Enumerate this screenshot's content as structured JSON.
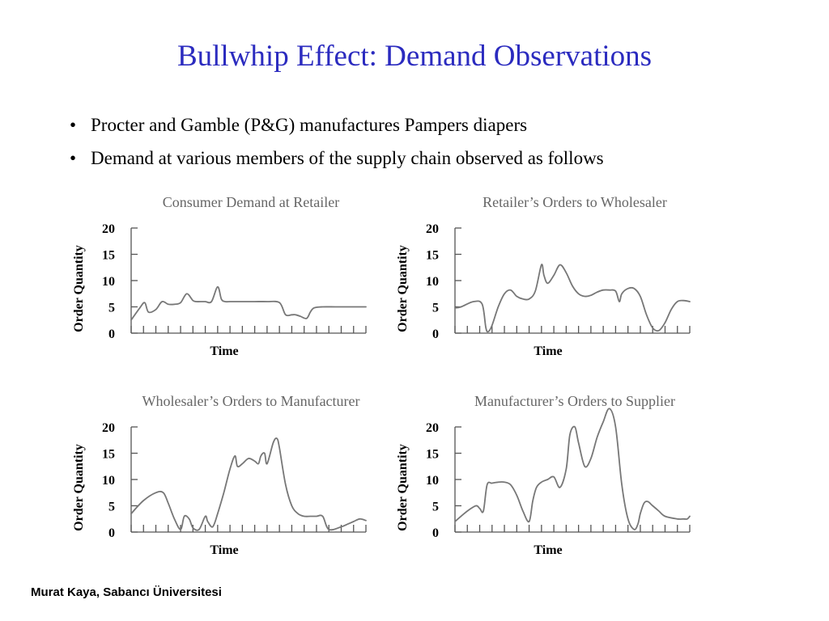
{
  "slide": {
    "title": "Bullwhip Effect: Demand Observations",
    "bullets": [
      "Procter and Gamble (P&G) manufactures Pampers diapers",
      "Demand at various members of the supply chain observed as follows"
    ],
    "footer": "Murat Kaya, Sabancı Üniversitesi"
  },
  "colors": {
    "title": "#2b2bbf",
    "line": "#777777",
    "chart_title": "#666666"
  },
  "chart_data": [
    {
      "type": "line",
      "title": "Consumer Demand at Retailer",
      "xlabel": "Time",
      "ylabel": "Order Quantity",
      "yticks": [
        "0",
        "5",
        "10",
        "15",
        "20"
      ],
      "ylim": [
        0,
        20
      ],
      "xlim": [
        0,
        19
      ],
      "x_tick_count": 20,
      "grid": false,
      "series": [
        {
          "x": [
            0,
            0.7,
            1.1,
            1.4,
            2.0,
            2.5,
            3.0,
            3.5,
            4.0,
            4.5,
            5.0,
            5.3,
            5.6,
            6.0,
            6.5,
            7.0,
            7.3,
            7.6,
            8.0,
            8.6,
            9.0,
            10.0,
            11.0,
            12.0,
            12.5,
            13.0,
            13.3,
            13.7,
            14.2,
            14.5,
            14.8,
            15.5,
            16.5,
            17.5,
            18.5,
            19.0
          ],
          "y": [
            2.5,
            4.8,
            5.8,
            4.0,
            4.5,
            6.0,
            5.5,
            5.5,
            5.8,
            7.5,
            6.2,
            6.0,
            6.0,
            6.0,
            6.0,
            8.8,
            6.5,
            6.0,
            6.0,
            6.0,
            6.0,
            6.0,
            6.0,
            5.8,
            3.5,
            3.5,
            3.5,
            3.2,
            2.8,
            4.0,
            4.8,
            5.0,
            5.0,
            5.0,
            5.0,
            5.0
          ]
        }
      ]
    },
    {
      "type": "line",
      "title": "Retailer’s Orders to Wholesaler",
      "xlabel": "Time",
      "ylabel": "Order Quantity",
      "yticks": [
        "0",
        "5",
        "10",
        "15",
        "20"
      ],
      "ylim": [
        0,
        20
      ],
      "xlim": [
        0,
        19
      ],
      "x_tick_count": 20,
      "grid": false,
      "series": [
        {
          "x": [
            0,
            0.5,
            1.5,
            2.2,
            2.5,
            2.7,
            3.0,
            3.5,
            4.0,
            4.5,
            5.0,
            5.5,
            6.0,
            6.5,
            7.0,
            7.2,
            7.5,
            8.0,
            8.5,
            9.0,
            9.5,
            10.0,
            10.5,
            11.0,
            11.5,
            12.0,
            12.5,
            13.0,
            13.3,
            13.5,
            14.0,
            14.5,
            15.0,
            15.5,
            16.0,
            16.5,
            17.0,
            17.5,
            18.0,
            18.5,
            19.0
          ],
          "y": [
            4.8,
            5.0,
            6.0,
            5.5,
            1.0,
            0.3,
            1.5,
            5.0,
            7.5,
            8.2,
            7.0,
            6.5,
            6.5,
            8.0,
            13.0,
            11.0,
            9.5,
            11.0,
            13.0,
            11.5,
            9.0,
            7.5,
            7.0,
            7.2,
            7.8,
            8.2,
            8.2,
            8.0,
            6.0,
            7.5,
            8.5,
            8.5,
            7.0,
            3.5,
            1.0,
            0.5,
            2.0,
            4.5,
            6.0,
            6.2,
            6.0
          ]
        }
      ]
    },
    {
      "type": "line",
      "title": "Wholesaler’s Orders to Manufacturer",
      "xlabel": "Time",
      "ylabel": "Order Quantity",
      "yticks": [
        "0",
        "5",
        "10",
        "15",
        "20"
      ],
      "ylim": [
        0,
        20
      ],
      "xlim": [
        0,
        19
      ],
      "x_tick_count": 20,
      "grid": false,
      "series": [
        {
          "x": [
            0,
            1.0,
            2.0,
            2.6,
            3.0,
            3.5,
            4.0,
            4.3,
            4.7,
            5.0,
            5.5,
            6.0,
            6.2,
            6.6,
            7.0,
            7.5,
            8.0,
            8.4,
            8.6,
            9.0,
            9.5,
            10.0,
            10.3,
            10.5,
            10.8,
            11.0,
            11.5,
            11.8,
            12.0,
            12.5,
            13.0,
            13.5,
            14.0,
            14.5,
            15.0,
            15.5,
            16.0,
            17.0,
            17.5,
            18.0,
            18.5,
            19.0
          ],
          "y": [
            3.5,
            6.0,
            7.5,
            7.5,
            5.5,
            2.5,
            0.5,
            3.0,
            2.5,
            0.8,
            0.5,
            3.0,
            2.0,
            1.0,
            3.5,
            7.5,
            12.0,
            14.5,
            12.5,
            13.0,
            14.0,
            13.5,
            13.0,
            14.5,
            15.0,
            13.0,
            17.0,
            17.8,
            16.0,
            9.0,
            5.0,
            3.5,
            3.0,
            3.0,
            3.0,
            3.0,
            0.5,
            1.0,
            1.5,
            2.0,
            2.5,
            2.2
          ]
        }
      ]
    },
    {
      "type": "line",
      "title": "Manufacturer’s Orders to Supplier",
      "xlabel": "Time",
      "ylabel": "Order Quantity",
      "yticks": [
        "0",
        "5",
        "10",
        "15",
        "20"
      ],
      "ylim": [
        0,
        20
      ],
      "xlim": [
        0,
        19
      ],
      "x_tick_count": 20,
      "grid": false,
      "series": [
        {
          "x": [
            0,
            1.0,
            1.7,
            2.0,
            2.3,
            2.6,
            3.0,
            3.5,
            4.0,
            4.5,
            5.0,
            5.5,
            6.0,
            6.3,
            6.6,
            7.0,
            7.5,
            8.0,
            8.5,
            9.0,
            9.3,
            9.7,
            10.0,
            10.5,
            11.0,
            11.5,
            12.0,
            12.5,
            13.0,
            13.5,
            14.0,
            14.5,
            14.8,
            15.0,
            15.3,
            15.6,
            16.0,
            16.5,
            17.0,
            18.0,
            18.5,
            18.8,
            19.0
          ],
          "y": [
            2.0,
            4.0,
            5.0,
            4.5,
            4.0,
            9.0,
            9.3,
            9.5,
            9.5,
            9.0,
            7.0,
            4.0,
            2.0,
            6.0,
            8.5,
            9.5,
            10.0,
            10.5,
            8.5,
            12.0,
            18.5,
            20.0,
            17.0,
            12.5,
            14.0,
            18.0,
            21.0,
            23.5,
            20.0,
            9.0,
            2.5,
            0.5,
            1.5,
            3.5,
            5.5,
            5.8,
            5.0,
            4.0,
            3.0,
            2.5,
            2.5,
            2.5,
            3.0
          ]
        }
      ]
    }
  ]
}
